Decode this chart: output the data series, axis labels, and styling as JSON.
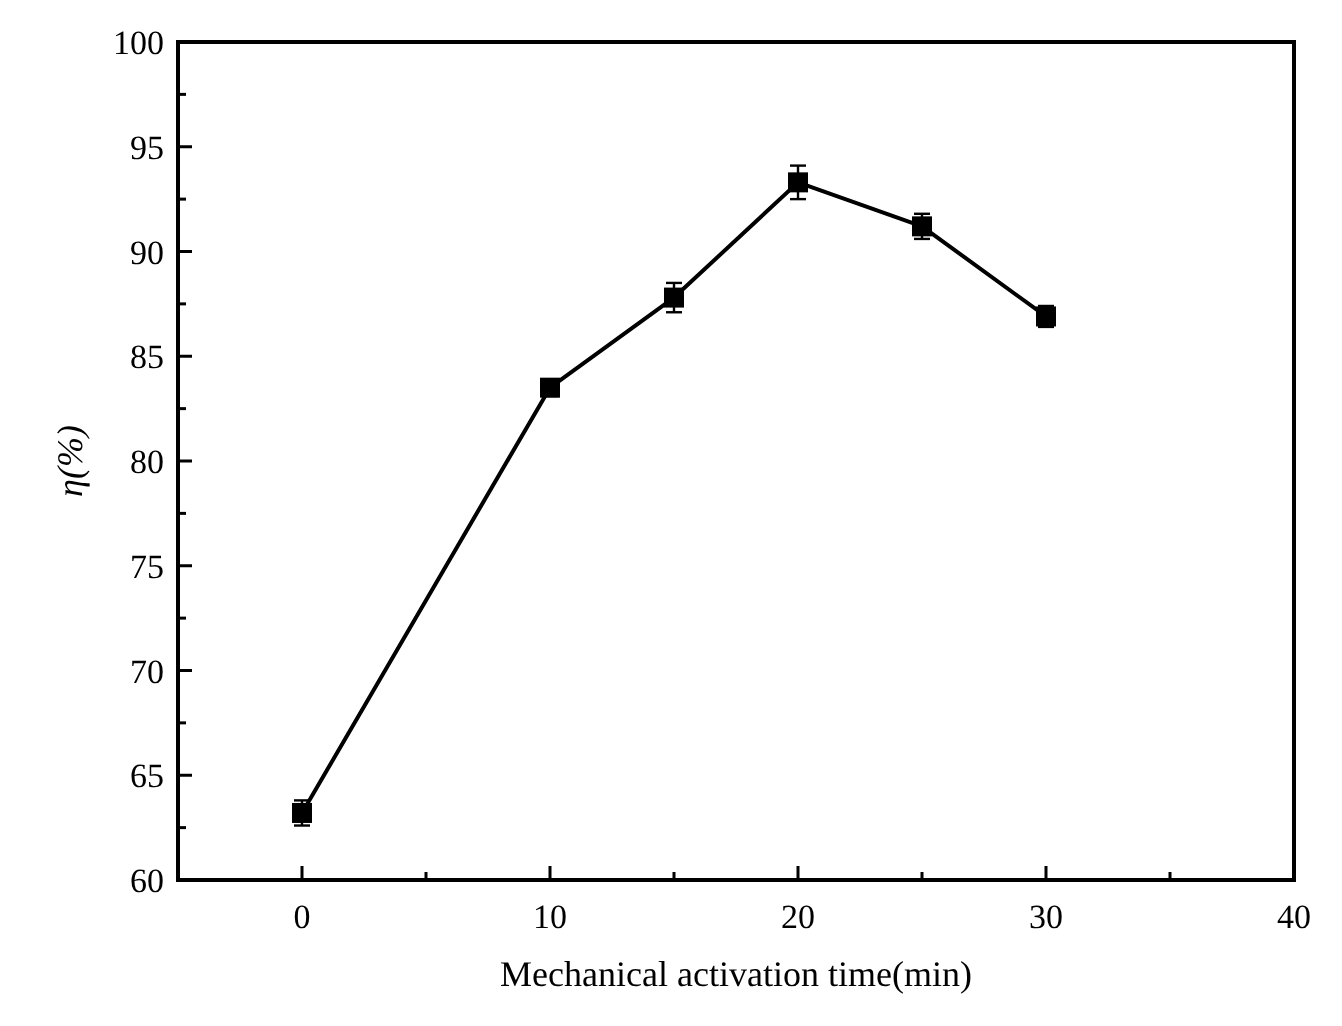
{
  "chart_data": {
    "type": "line",
    "xlabel": "Mechanical activation time(min)",
    "ylabel": "η(%)",
    "x": [
      0,
      10,
      15,
      20,
      25,
      30
    ],
    "series": [
      {
        "color": "#000000",
        "values": [
          63.2,
          83.5,
          87.8,
          93.3,
          91.2,
          86.9
        ],
        "errors": [
          0.6,
          0.4,
          0.7,
          0.8,
          0.6,
          0.5
        ]
      }
    ],
    "xlim": [
      -5,
      40
    ],
    "xticks": [
      0,
      {
        "value": 5,
        "label": null
      },
      10,
      {
        "value": 15,
        "label": null
      },
      20,
      {
        "value": 25,
        "label": null
      },
      30,
      {
        "value": 35,
        "label": null
      },
      40
    ],
    "ylim": [
      60,
      100
    ],
    "yticks": [
      60,
      {
        "value": 62.5,
        "label": null
      },
      65,
      {
        "value": 67.5,
        "label": null
      },
      70,
      {
        "value": 72.5,
        "label": null
      },
      75,
      {
        "value": 77.5,
        "label": null
      },
      80,
      {
        "value": 82.5,
        "label": null
      },
      85,
      {
        "value": 87.5,
        "label": null
      },
      90,
      {
        "value": 92.5,
        "label": null
      },
      95,
      {
        "value": 97.5,
        "label": null
      },
      100
    ],
    "marker": "square",
    "line_style": "solid",
    "grid": false
  }
}
